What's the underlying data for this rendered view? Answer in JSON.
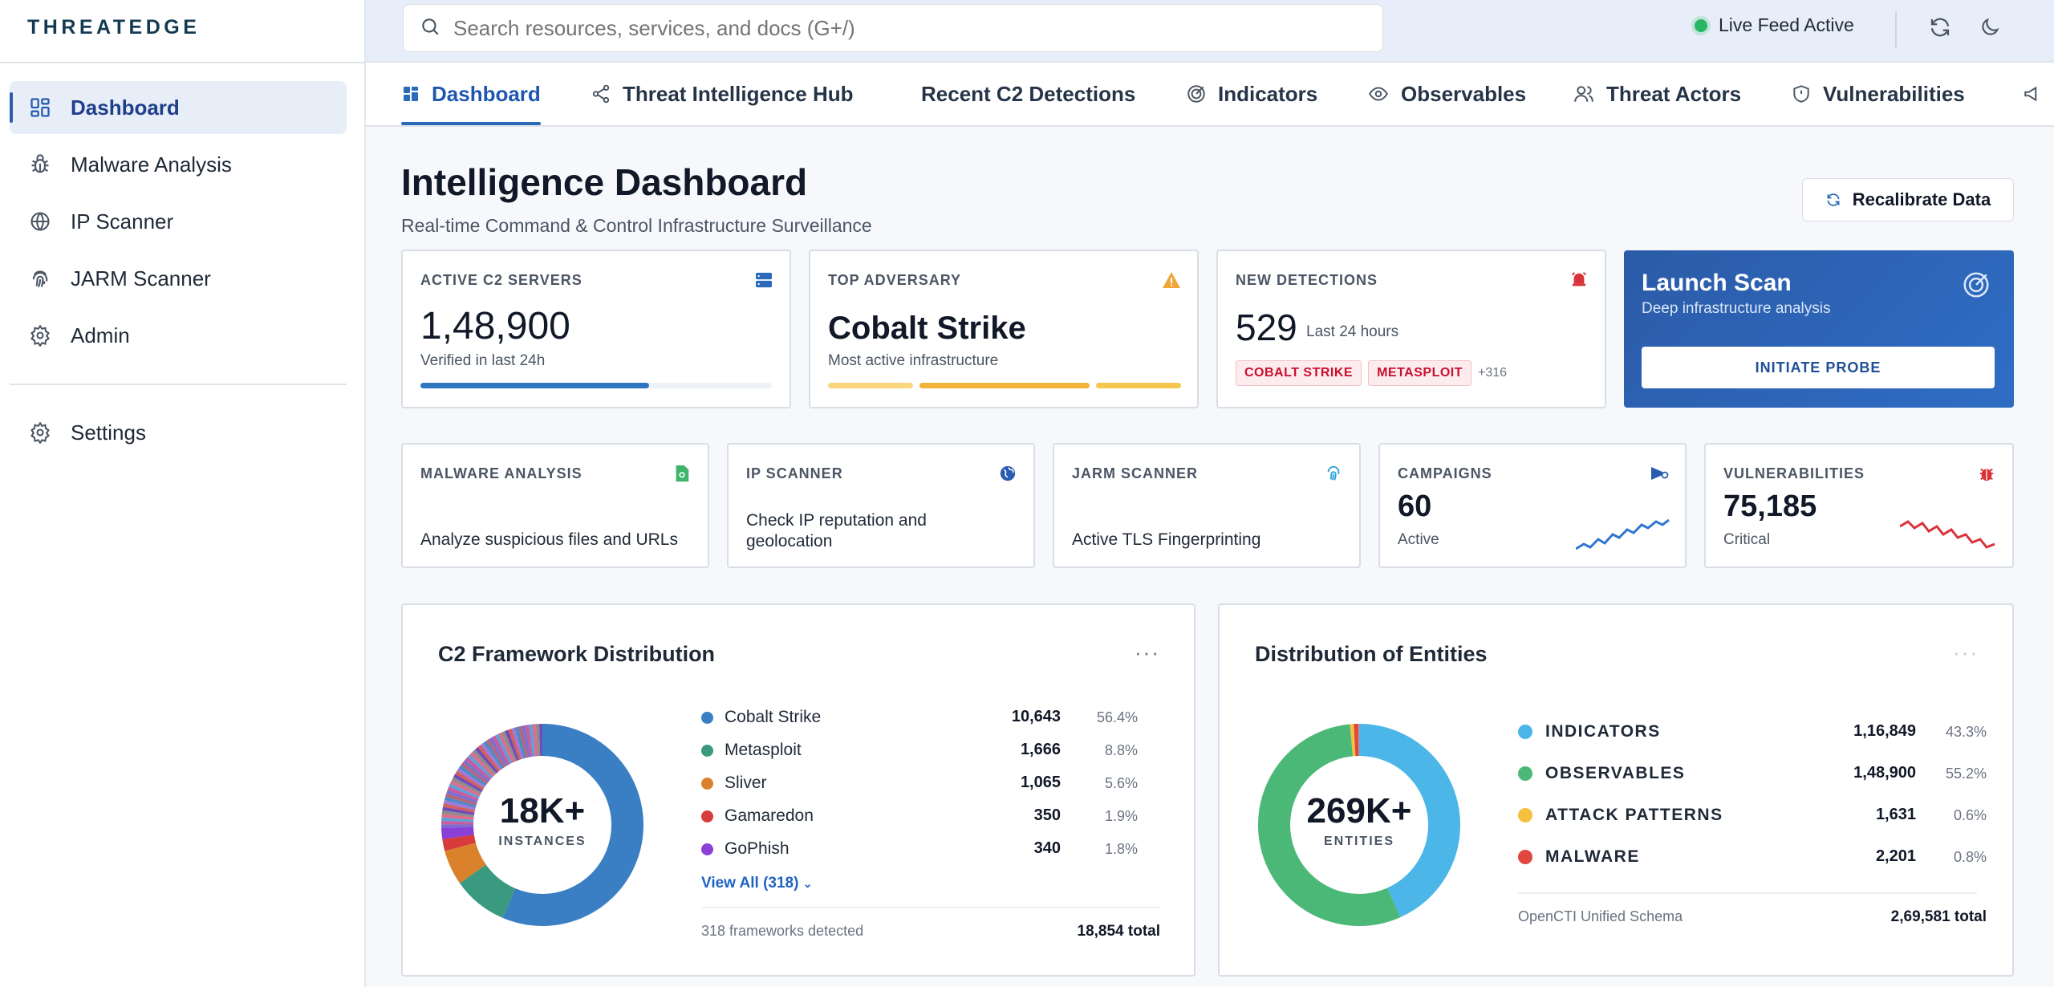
{
  "brand": {
    "name": "THREATEDGE"
  },
  "sidebar": {
    "items": [
      {
        "label": "Dashboard",
        "icon": "dashboard-icon",
        "active": true
      },
      {
        "label": "Malware Analysis",
        "icon": "bug-icon"
      },
      {
        "label": "IP Scanner",
        "icon": "globe-icon"
      },
      {
        "label": "JARM Scanner",
        "icon": "fingerprint-icon"
      },
      {
        "label": "Admin",
        "icon": "gear-icon"
      }
    ],
    "settings_label": "Settings"
  },
  "topbar": {
    "search_placeholder": "Search resources, services, and docs (G+/)",
    "live_status": "Live Feed Active"
  },
  "tabs": [
    {
      "label": "Dashboard",
      "active": true
    },
    {
      "label": "Threat Intelligence Hub"
    },
    {
      "label": "Recent C2 Detections"
    },
    {
      "label": "Indicators"
    },
    {
      "label": "Observables"
    },
    {
      "label": "Threat Actors"
    },
    {
      "label": "Vulnerabilities"
    }
  ],
  "header": {
    "title": "Intelligence Dashboard",
    "subtitle": "Real-time Command & Control Infrastructure Surveillance",
    "recalibrate_label": "Recalibrate Data"
  },
  "stats": {
    "active_c2": {
      "label": "ACTIVE C2 SERVERS",
      "value": "1,48,900",
      "note": "Verified in last 24h",
      "progress": 0.65
    },
    "top_adversary": {
      "label": "TOP ADVERSARY",
      "value": "Cobalt Strike",
      "note": "Most active infrastructure"
    },
    "new_detections": {
      "label": "NEW DETECTIONS",
      "value": "529",
      "note": "Last 24 hours",
      "tags": [
        "COBALT STRIKE",
        "METASPLOIT"
      ],
      "more": "+316"
    },
    "launch": {
      "title": "Launch Scan",
      "subtitle": "Deep infrastructure analysis",
      "button": "INITIATE PROBE"
    }
  },
  "tools": {
    "malware": {
      "label": "MALWARE ANALYSIS",
      "text": "Analyze suspicious files and URLs"
    },
    "ip": {
      "label": "IP SCANNER",
      "text": "Check IP reputation and geolocation"
    },
    "jarm": {
      "label": "JARM SCANNER",
      "text": "Active TLS Fingerprinting"
    },
    "campaigns": {
      "label": "CAMPAIGNS",
      "value": "60",
      "sub": "Active"
    },
    "vulns": {
      "label": "VULNERABILITIES",
      "value": "75,185",
      "sub": "Critical"
    }
  },
  "c2_panel": {
    "title": "C2 Framework Distribution",
    "menu": "···",
    "center_value": "18K+",
    "center_unit": "INSTANCES",
    "rows": [
      {
        "name": "Cobalt Strike",
        "value": "10,643",
        "pct": "56.4%",
        "color": "#3a7fc4"
      },
      {
        "name": "Metasploit",
        "value": "1,666",
        "pct": "8.8%",
        "color": "#3a9a80"
      },
      {
        "name": "Sliver",
        "value": "1,065",
        "pct": "5.6%",
        "color": "#d9822b"
      },
      {
        "name": "Gamaredon",
        "value": "350",
        "pct": "1.9%",
        "color": "#d83b3b"
      },
      {
        "name": "GoPhish",
        "value": "340",
        "pct": "1.8%",
        "color": "#8a3fd6"
      }
    ],
    "view_all": "View All (318)",
    "footer_left": "318 frameworks detected",
    "footer_right": "18,854 total"
  },
  "entities_panel": {
    "title": "Distribution of Entities",
    "menu": "···",
    "center_value": "269K+",
    "center_unit": "ENTITIES",
    "rows": [
      {
        "name": "INDICATORS",
        "value": "1,16,849",
        "pct": "43.3%",
        "color": "#4db6e8"
      },
      {
        "name": "OBSERVABLES",
        "value": "1,48,900",
        "pct": "55.2%",
        "color": "#4cb878"
      },
      {
        "name": "ATTACK PATTERNS",
        "value": "1,631",
        "pct": "0.6%",
        "color": "#f5c13c"
      },
      {
        "name": "MALWARE",
        "value": "2,201",
        "pct": "0.8%",
        "color": "#e0473e"
      }
    ],
    "footer_left": "OpenCTI Unified Schema",
    "footer_right": "2,69,581 total"
  }
}
